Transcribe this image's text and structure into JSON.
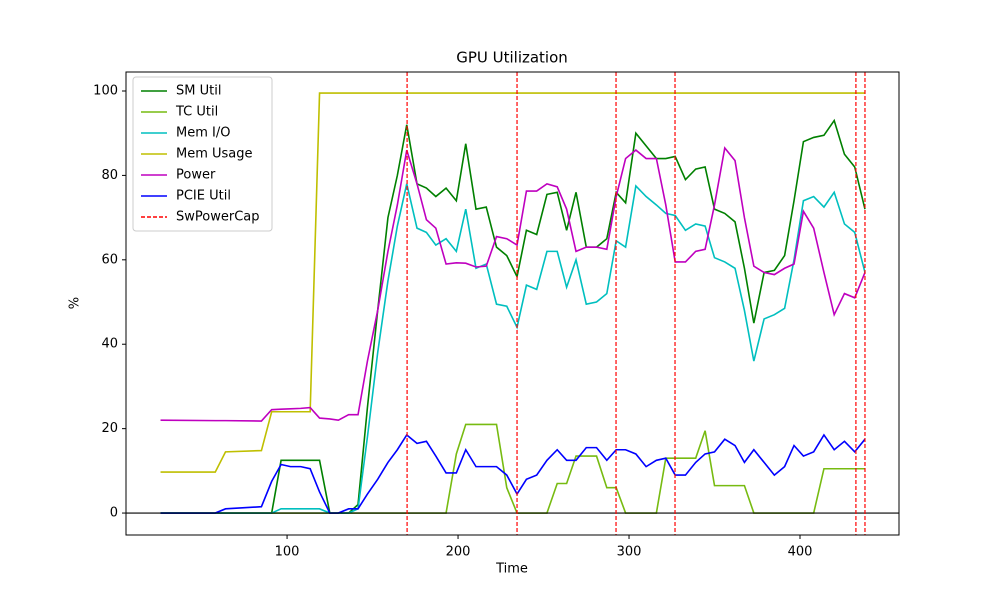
{
  "chart_data": {
    "type": "line",
    "title": "GPU Utilization",
    "xlabel": "Time",
    "ylabel": "%",
    "x": [
      26,
      58,
      64,
      85,
      91,
      96.5,
      102,
      108,
      113.5,
      119,
      125,
      130,
      136,
      141.5,
      147,
      153,
      159,
      164.5,
      170,
      176,
      181.5,
      187,
      193,
      199,
      204.5,
      210.5,
      216.5,
      222.5,
      228.5,
      234.5,
      240,
      246,
      252,
      258,
      263.5,
      269,
      275,
      281,
      287,
      292.5,
      298,
      304,
      310,
      316,
      321.5,
      327,
      333,
      339,
      344.5,
      350,
      356,
      362,
      367.5,
      373,
      379,
      385,
      391,
      396.5,
      402,
      408,
      414,
      420,
      426,
      432,
      438
    ],
    "series": [
      {
        "name": "SM Util",
        "color": "#008000",
        "values": [
          0,
          0,
          0,
          0,
          0,
          12.5,
          12.5,
          12.5,
          12.5,
          12.5,
          0,
          0,
          0,
          2,
          25,
          48,
          70,
          80,
          92,
          78,
          77,
          75,
          77,
          74,
          87.5,
          72,
          72.5,
          63,
          61,
          56,
          67,
          66,
          75.5,
          76,
          67,
          76,
          63,
          63,
          65,
          76,
          73.5,
          90,
          87,
          84,
          84,
          84.5,
          79,
          81.5,
          82,
          72,
          71,
          69,
          58,
          45,
          57,
          57.5,
          61,
          74,
          88,
          89,
          89.5,
          93,
          85,
          82,
          72
        ]
      },
      {
        "name": "TC Util",
        "color": "#77bb11",
        "values": [
          0,
          0,
          0,
          0,
          0,
          0,
          0,
          0,
          0,
          0,
          0,
          0,
          0,
          0,
          0,
          0,
          0,
          0,
          0,
          0,
          0,
          0,
          0,
          14,
          21,
          21,
          21,
          21,
          6,
          0,
          0,
          0,
          0,
          7,
          7,
          13.5,
          13.5,
          13.5,
          6,
          6,
          0,
          0,
          0,
          0,
          13,
          13,
          13,
          13,
          19.5,
          6.5,
          6.5,
          6.5,
          6.5,
          0,
          0,
          0,
          0,
          0,
          0,
          0,
          10.5,
          10.5,
          10.5,
          10.5,
          10.5
        ]
      },
      {
        "name": "Mem I/O",
        "color": "#00bfbf",
        "values": [
          0,
          0,
          0,
          0,
          0,
          1,
          1,
          1,
          1,
          1,
          0,
          0,
          0,
          1,
          18,
          38,
          55,
          68,
          78,
          67.5,
          66.5,
          63.5,
          65,
          62,
          72,
          58,
          59,
          49.5,
          49,
          44,
          54,
          53,
          62,
          62,
          53.5,
          60,
          49.5,
          50,
          52,
          64.5,
          63,
          77.5,
          75,
          73,
          71,
          70.5,
          67,
          68.5,
          68,
          60.5,
          59.5,
          58,
          48,
          36,
          46,
          47,
          48.5,
          60,
          74,
          75,
          72.5,
          76,
          68.5,
          66.5,
          57
        ]
      },
      {
        "name": "Mem Usage",
        "color": "#bfbf00",
        "values": [
          9.7,
          9.7,
          14.5,
          14.8,
          24,
          24,
          24,
          24,
          24,
          99.5,
          99.5,
          99.5,
          99.5,
          99.5,
          99.5,
          99.5,
          99.5,
          99.5,
          99.5,
          99.5,
          99.5,
          99.5,
          99.5,
          99.5,
          99.5,
          99.5,
          99.5,
          99.5,
          99.5,
          99.5,
          99.5,
          99.5,
          99.5,
          99.5,
          99.5,
          99.5,
          99.5,
          99.5,
          99.5,
          99.5,
          99.5,
          99.5,
          99.5,
          99.5,
          99.5,
          99.5,
          99.5,
          99.5,
          99.5,
          99.5,
          99.5,
          99.5,
          99.5,
          99.5,
          99.5,
          99.5,
          99.5,
          99.5,
          99.5,
          99.5,
          99.5,
          99.5,
          99.5,
          99.5,
          99.5
        ]
      },
      {
        "name": "Power",
        "color": "#bf00bf",
        "values": [
          22,
          21.9,
          21.9,
          21.8,
          24.5,
          24.6,
          24.7,
          24.8,
          25,
          22.5,
          22.3,
          22,
          23.3,
          23.3,
          36,
          48,
          62,
          73,
          86,
          78,
          69.5,
          67.5,
          59,
          59.3,
          59.2,
          58.3,
          58.5,
          65.5,
          65,
          63.5,
          76.3,
          76.3,
          78,
          77.3,
          72,
          62,
          63,
          63,
          62.5,
          75,
          84,
          86,
          84,
          84,
          73,
          59.5,
          59.5,
          62,
          62.5,
          73,
          86.5,
          83.5,
          70,
          58.5,
          57,
          56.5,
          58,
          59,
          71.5,
          67.5,
          57,
          47,
          52,
          51,
          57
        ]
      },
      {
        "name": "PCIE Util",
        "color": "#0000ff",
        "values": [
          0,
          0,
          1,
          1.5,
          7.5,
          11.5,
          11,
          11,
          10.5,
          5,
          0,
          0,
          1,
          1,
          4.5,
          8,
          12,
          15,
          18.5,
          16.5,
          17,
          13.5,
          9.5,
          9.5,
          15,
          11,
          11,
          11,
          9,
          4.5,
          8,
          9,
          12.5,
          15,
          12.5,
          12.5,
          15.5,
          15.5,
          12.5,
          15,
          15,
          14,
          11,
          12.5,
          13,
          9,
          9,
          12,
          14,
          14.5,
          17.5,
          16,
          12,
          15,
          12,
          9,
          11,
          16,
          13.5,
          14.5,
          18.5,
          15,
          17,
          14.5,
          17.5
        ]
      }
    ],
    "vlines": {
      "name": "SwPowerCap",
      "color": "#ff0000",
      "x": [
        170.2,
        234.5,
        292.4,
        326.9,
        432.7,
        438
      ]
    },
    "hline": 0,
    "xlim": [
      5.8,
      457.9
    ],
    "ylim": [
      -5.2,
      104.5
    ],
    "xticks": [
      100,
      200,
      300,
      400
    ],
    "yticks": [
      0,
      20,
      40,
      60,
      80,
      100
    ],
    "legend": "upper left"
  }
}
